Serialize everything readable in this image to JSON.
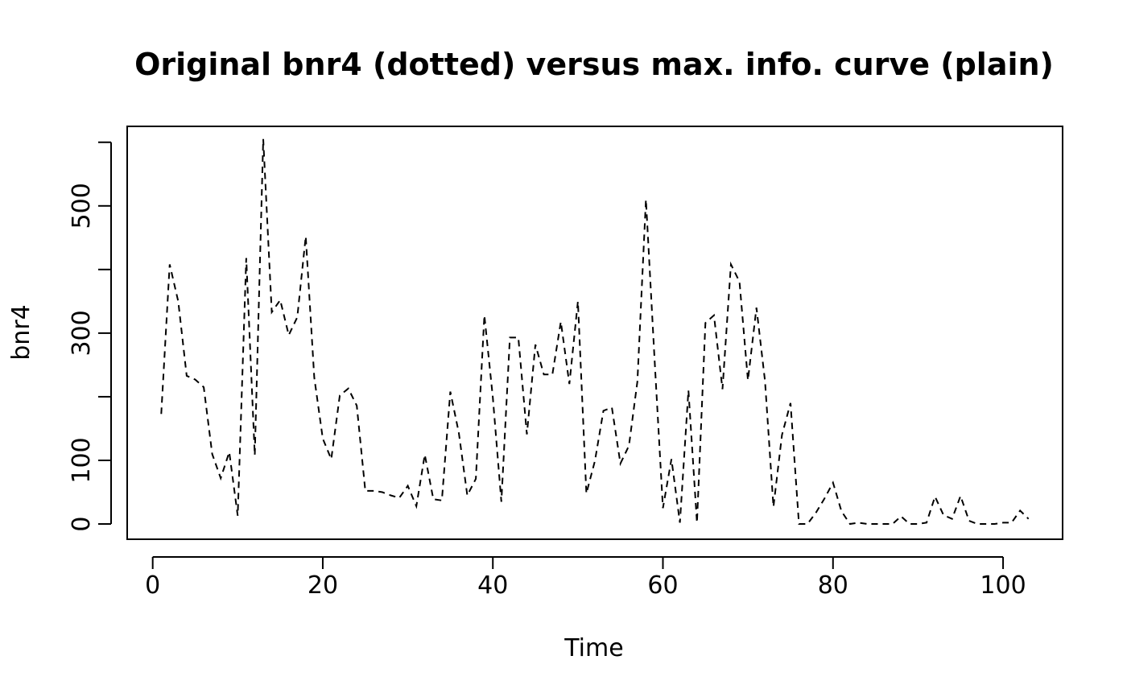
{
  "chart_data": {
    "type": "line",
    "title": "Original bnr4 (dotted) versus max. info. curve (plain)",
    "xlabel": "Time",
    "ylabel": "bnr4",
    "xlim": [
      -3,
      107
    ],
    "ylim": [
      -24,
      625
    ],
    "x_ticks": [
      0,
      20,
      40,
      60,
      80,
      100
    ],
    "y_ticks": [
      0,
      100,
      200,
      300,
      400,
      500,
      600
    ],
    "y_tick_labels": [
      "0",
      "100",
      "",
      "300",
      "",
      "500",
      ""
    ],
    "grid": false,
    "series": [
      {
        "line_style": "dashed",
        "color": "#000000",
        "x": [
          1,
          2,
          3,
          4,
          5,
          6,
          7,
          8,
          9,
          10,
          11,
          12,
          13,
          14,
          15,
          16,
          17,
          18,
          19,
          20,
          21,
          22,
          23,
          24,
          25,
          26,
          27,
          28,
          29,
          30,
          31,
          32,
          33,
          34,
          35,
          36,
          37,
          38,
          39,
          40,
          41,
          42,
          43,
          44,
          45,
          46,
          47,
          48,
          49,
          50,
          51,
          52,
          53,
          54,
          55,
          56,
          57,
          58,
          59,
          60,
          61,
          62,
          63,
          64,
          65,
          66,
          67,
          68,
          69,
          70,
          71,
          72,
          73,
          74,
          75,
          76,
          77,
          78,
          79,
          80,
          81,
          82,
          83,
          84,
          85,
          86,
          87,
          88,
          89,
          90,
          91,
          92,
          93,
          94,
          95,
          96,
          97,
          98,
          99,
          100,
          101,
          102,
          103
        ],
        "values": [
          173,
          408,
          350,
          233,
          227,
          215,
          110,
          72,
          113,
          13,
          418,
          108,
          605,
          333,
          352,
          297,
          325,
          452,
          230,
          134,
          102,
          202,
          213,
          186,
          52,
          52,
          50,
          45,
          41,
          60,
          28,
          109,
          39,
          37,
          208,
          143,
          45,
          71,
          328,
          199,
          35,
          293,
          293,
          141,
          282,
          235,
          235,
          318,
          220,
          350,
          48,
          99,
          178,
          183,
          95,
          123,
          224,
          510,
          264,
          25,
          102,
          2,
          210,
          2,
          316,
          328,
          212,
          408,
          381,
          226,
          340,
          225,
          27,
          140,
          190,
          0,
          0,
          18,
          40,
          65,
          20,
          0,
          2,
          0,
          0,
          0,
          0,
          12,
          0,
          0,
          2,
          43,
          14,
          8,
          44,
          5,
          0,
          0,
          0,
          2,
          2,
          21,
          8
        ]
      }
    ]
  }
}
